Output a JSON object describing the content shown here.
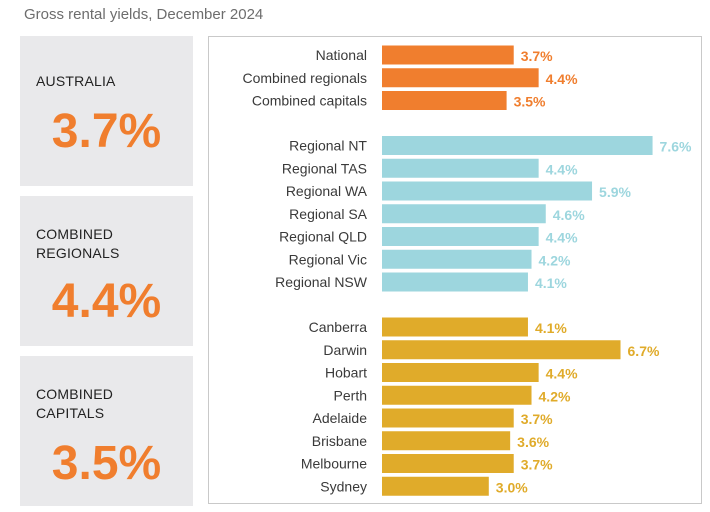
{
  "title": "Gross rental yields, December 2024",
  "colors": {
    "national": "#f07e2e",
    "regional": "#9dd6de",
    "capital": "#e0ab2a",
    "card_value": "#f07e2e",
    "card_bg": "#e9e9eb"
  },
  "cards": [
    {
      "label": "AUSTRALIA",
      "value": "3.7%"
    },
    {
      "label": "COMBINED\nREGIONALS",
      "value": "4.4%"
    },
    {
      "label": "COMBINED\nCAPITALS",
      "value": "3.5%"
    }
  ],
  "chart_data": {
    "type": "bar",
    "orientation": "horizontal",
    "title": "Gross rental yields, December 2024",
    "unit": "%",
    "xlim": [
      0,
      8
    ],
    "groups": [
      {
        "name": "headline",
        "color": "#f07e2e",
        "categories": [
          "National",
          "Combined regionals",
          "Combined capitals"
        ],
        "values": [
          3.7,
          4.4,
          3.5
        ],
        "labels": [
          "3.7%",
          "4.4%",
          "3.5%"
        ]
      },
      {
        "name": "regional",
        "color": "#9dd6de",
        "categories": [
          "Regional NT",
          "Regional TAS",
          "Regional WA",
          "Regional SA",
          "Regional QLD",
          "Regional Vic",
          "Regional NSW"
        ],
        "values": [
          7.6,
          4.4,
          5.9,
          4.6,
          4.4,
          4.2,
          4.1
        ],
        "labels": [
          "7.6%",
          "4.4%",
          "5.9%",
          "4.6%",
          "4.4%",
          "4.2%",
          "4.1%"
        ]
      },
      {
        "name": "capital",
        "color": "#e0ab2a",
        "categories": [
          "Canberra",
          "Darwin",
          "Hobart",
          "Perth",
          "Adelaide",
          "Brisbane",
          "Melbourne",
          "Sydney"
        ],
        "values": [
          4.1,
          6.7,
          4.4,
          4.2,
          3.7,
          3.6,
          3.7,
          3.0
        ],
        "labels": [
          "4.1%",
          "6.7%",
          "4.4%",
          "4.2%",
          "3.7%",
          "3.6%",
          "3.7%",
          "3.0%"
        ]
      }
    ]
  }
}
